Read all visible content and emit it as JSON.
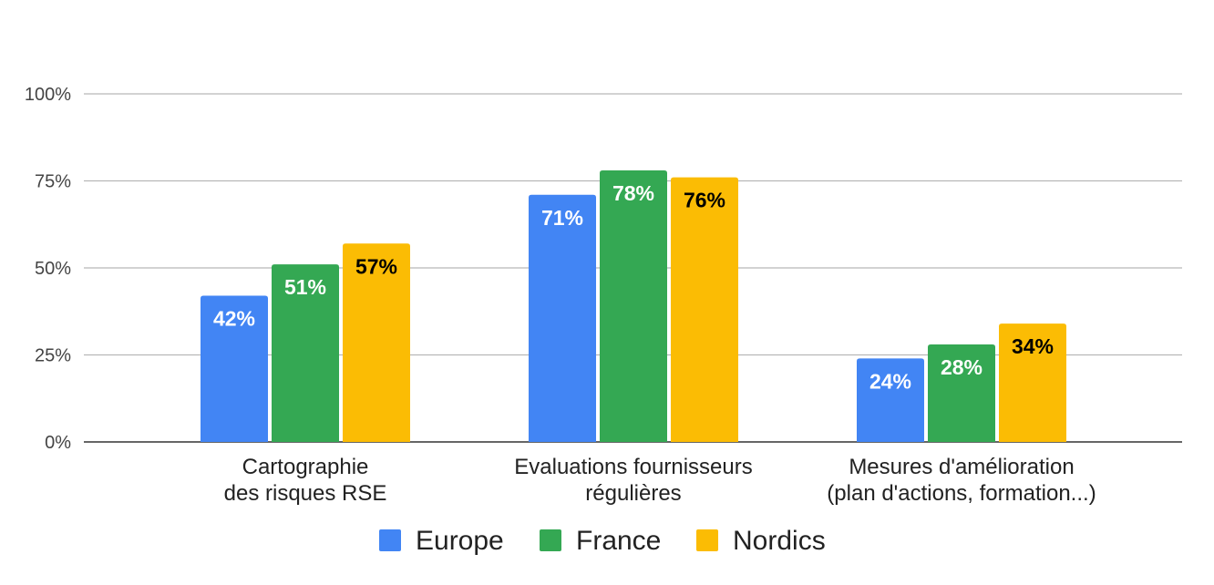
{
  "chart_data": {
    "type": "bar",
    "title": "",
    "xlabel": "",
    "ylabel": "",
    "ylim": [
      0,
      100
    ],
    "yticks": [
      "0%",
      "25%",
      "50%",
      "75%",
      "100%"
    ],
    "ytick_values": [
      0,
      25,
      50,
      75,
      100
    ],
    "grid": true,
    "legend_position": "bottom",
    "categories": [
      [
        "Cartographie",
        "des risques RSE"
      ],
      [
        "Evaluations fournisseurs",
        "régulières"
      ],
      [
        "Mesures d'amélioration",
        "(plan d'actions, formation...)"
      ]
    ],
    "series": [
      {
        "name": "Europe",
        "color": "#4285F4",
        "label_color": "#ffffff",
        "values": [
          42,
          71,
          24
        ],
        "labels": [
          "42%",
          "71%",
          "24%"
        ]
      },
      {
        "name": "France",
        "color": "#34A853",
        "label_color": "#ffffff",
        "values": [
          51,
          78,
          28
        ],
        "labels": [
          "51%",
          "78%",
          "28%"
        ]
      },
      {
        "name": "Nordics",
        "color": "#FBBC04",
        "label_color": "#000000",
        "values": [
          57,
          76,
          34
        ],
        "labels": [
          "57%",
          "76%",
          "34%"
        ]
      }
    ]
  }
}
